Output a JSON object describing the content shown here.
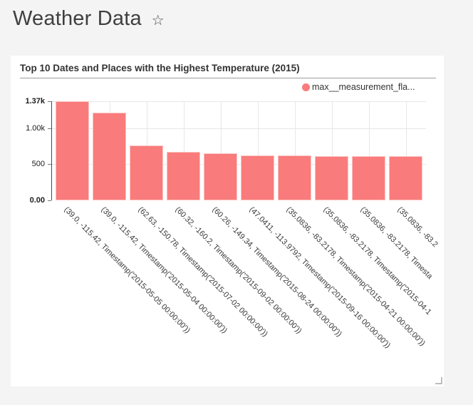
{
  "header": {
    "title": "Weather Data",
    "star_icon": "☆"
  },
  "panel": {
    "title": "Top 10 Dates and Places with the Highest Temperature (2015)",
    "legend": {
      "label": "max__measurement_fla...",
      "color": "#f97b7b"
    }
  },
  "chart_data": {
    "type": "bar",
    "title": "Top 10 Dates and Places with the Highest Temperature (2015)",
    "legend_entries": [
      "max__measurement_fla..."
    ],
    "legend_position": "top-right",
    "grid": true,
    "bar_color": "#f97b7b",
    "xlabel": "",
    "ylabel": "",
    "ylim": [
      0,
      1370
    ],
    "y_ticks": [
      {
        "label": "0.00",
        "value": 0,
        "strong": true
      },
      {
        "label": "500",
        "value": 500,
        "strong": false
      },
      {
        "label": "1.00k",
        "value": 1000,
        "strong": false
      },
      {
        "label": "1.37k",
        "value": 1370,
        "strong": true
      }
    ],
    "categories": [
      "(39.0, -115.42, Timestamp('2015-05-05 00:00:00'))",
      "(39.0, -115.42, Timestamp('2015-05-04 00:00:00'))",
      "(62.63, -150.78, Timestamp('2015-07-02 00:00:00'))",
      "(60.32, -160.2, Timestamp('2015-09-02 00:00:00'))",
      "(60.26, -149.34, Timestamp('2015-08-24 00:00:00'))",
      "(47.0411, -113.9792, Timestamp('2015-09-16 00:00:00'))",
      "(35.0836, -83.2178, Timestamp('2015-04-21 00:00:00'))",
      "(35.0836, -83.2178, Timestamp('2015-04-1",
      "(35.0836, -83.2178, Timesta",
      "(35.0836, -83.2"
    ],
    "values": [
      1370,
      1210,
      755,
      670,
      655,
      620,
      617,
      616,
      615,
      614
    ]
  }
}
